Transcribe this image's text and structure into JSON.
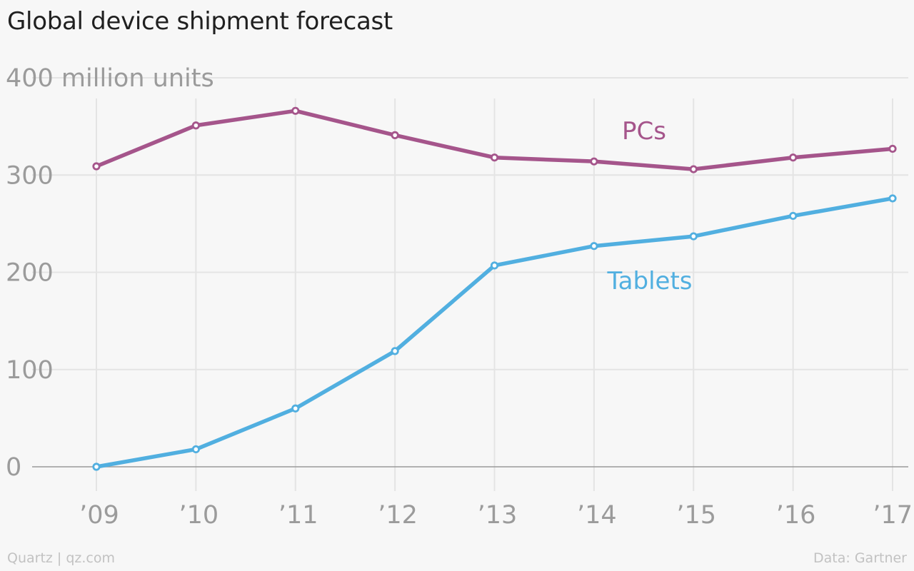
{
  "chart_data": {
    "type": "line",
    "title": "Global device shipment forecast",
    "ylabel": "million units",
    "x": [
      "’09",
      "’10",
      "’11",
      "’12",
      "’13",
      "’14",
      "’15",
      "’16",
      "’17"
    ],
    "y_ticks": [
      0,
      100,
      200,
      300,
      400
    ],
    "y_tick_labels": [
      "0",
      "100",
      "200",
      "300",
      "400 million units"
    ],
    "ylim": [
      0,
      400
    ],
    "grid": true,
    "series": [
      {
        "name": "PCs",
        "color": "#a5558b",
        "values": [
          309,
          351,
          366,
          341,
          318,
          314,
          306,
          318,
          327
        ]
      },
      {
        "name": "Tablets",
        "color": "#51afe0",
        "values": [
          0,
          18,
          60,
          119,
          207,
          227,
          237,
          258,
          276
        ]
      }
    ]
  },
  "footer": {
    "source_left": "Quartz | qz.com",
    "source_right": "Data: Gartner"
  },
  "colors": {
    "background": "#f7f7f7",
    "grid": "#e4e4e4",
    "baseline": "#9a9a9a",
    "tick_label": "#9b9b9b"
  }
}
